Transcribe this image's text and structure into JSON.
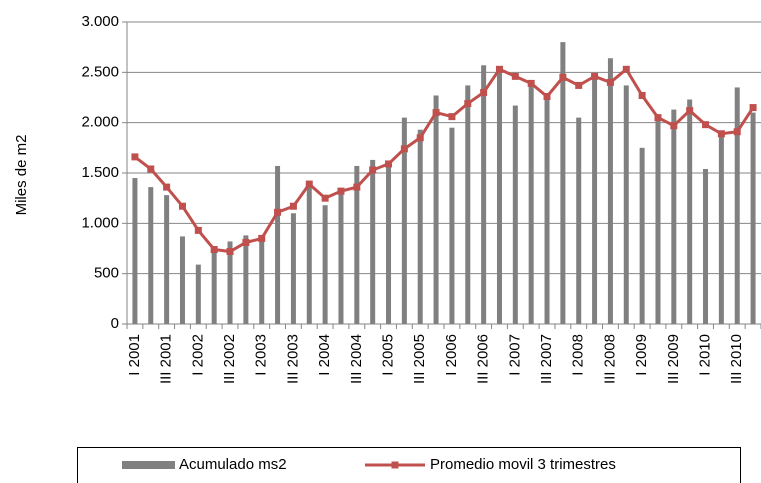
{
  "chart_data": {
    "type": "bar_line",
    "y_label": "Miles de m2",
    "categories": [
      "I 2001",
      null,
      "III 2001",
      null,
      "I 2002",
      null,
      "III 2002",
      null,
      "I 2003",
      null,
      "III 2003",
      null,
      "I 2004",
      null,
      "III 2004",
      null,
      "I 2005",
      null,
      "III 2005",
      null,
      "I 2006",
      null,
      "III 2006",
      null,
      "I 2007",
      null,
      "III 2007",
      null,
      "I 2008",
      null,
      "III 2008",
      null,
      "I 2009",
      null,
      "III 2009",
      null,
      "I 2010",
      null,
      "III 2010",
      null
    ],
    "series": [
      {
        "name": "Acumulado ms2",
        "type": "bar",
        "color": "#808080",
        "values": [
          1450,
          1360,
          1280,
          870,
          590,
          760,
          820,
          880,
          860,
          1570,
          1100,
          1400,
          1180,
          1330,
          1570,
          1630,
          1560,
          2050,
          1930,
          2270,
          1950,
          2370,
          2570,
          2560,
          2170,
          2390,
          2250,
          2800,
          2050,
          2490,
          2640,
          2370,
          1750,
          2050,
          2130,
          2230,
          1540,
          1880,
          2350,
          2100
        ]
      },
      {
        "name": "Promedio movil 3 trimestres",
        "type": "line",
        "color": "#c0504d",
        "values": [
          1660,
          1540,
          1360,
          1170,
          930,
          740,
          720,
          810,
          850,
          1110,
          1170,
          1390,
          1250,
          1320,
          1360,
          1530,
          1590,
          1740,
          1850,
          2100,
          2060,
          2190,
          2300,
          2530,
          2460,
          2390,
          2260,
          2450,
          2370,
          2460,
          2400,
          2530,
          2270,
          2050,
          1970,
          2120,
          1980,
          1890,
          1910,
          2150
        ]
      }
    ],
    "ylim": [
      0,
      3000
    ],
    "yticks": [
      0,
      500,
      {
        "value": 1000,
        "label": "1.000"
      },
      {
        "value": 1500,
        "label": "1.500"
      },
      {
        "value": 2000,
        "label": "2.000"
      },
      {
        "value": 2500,
        "label": "2.500"
      },
      {
        "value": 3000,
        "label": "3.000"
      }
    ],
    "grid": true,
    "legend": "bottom"
  }
}
